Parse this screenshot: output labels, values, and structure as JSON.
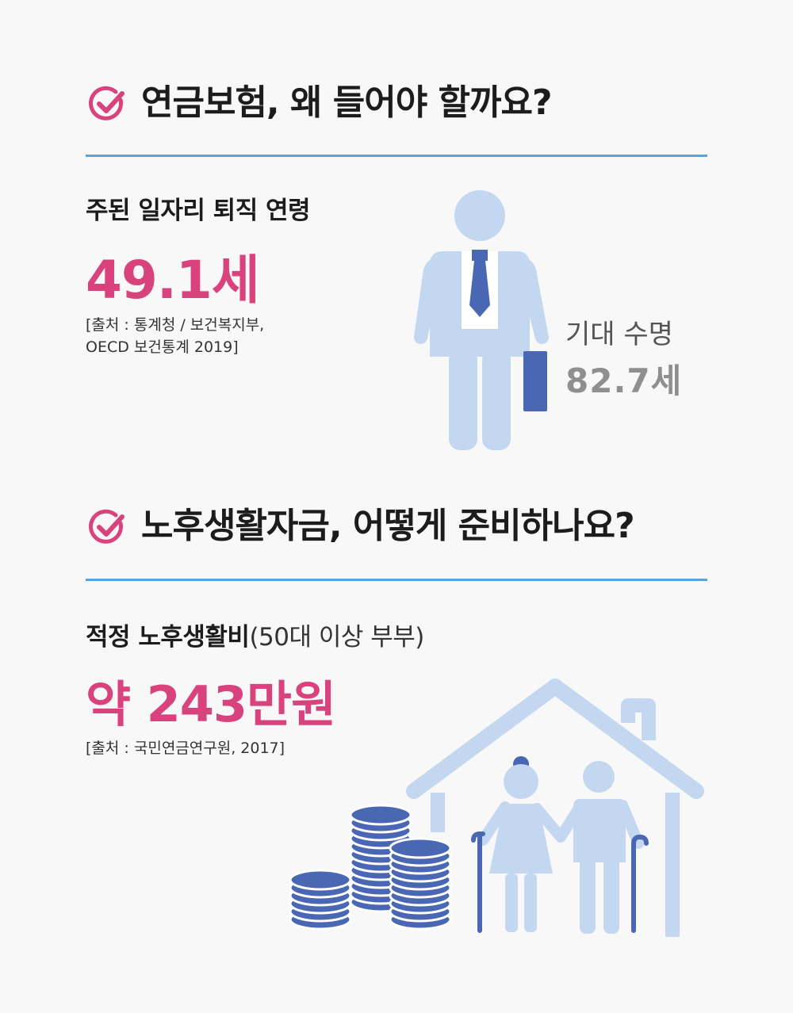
{
  "section1": {
    "heading": "연금보험, 왜 들어야 할까요?",
    "subtitle": "주된 일자리 퇴직 연령",
    "value": "49.1세",
    "source_line1": "[출처 : 통계청 / 보건복지부,",
    "source_line2": "OECD 보건통계 2019]",
    "life_label": "기대 수명",
    "life_value": "82.7세"
  },
  "section2": {
    "heading": "노후생활자금, 어떻게 준비하나요?",
    "subtitle_bold": "적정 노후생활비",
    "subtitle_normal": "(50대 이상 부부)",
    "value": "약 243만원",
    "source": "[출처 : 국민연금연구원, 2017]"
  },
  "colors": {
    "accent_pink": "#d9437d",
    "rule_blue": "#5ba3dc",
    "illustration_light": "#c3d7f1",
    "illustration_dark": "#4a67b4"
  },
  "icons": {
    "check": "check-circle-icon",
    "businessman": "businessman-icon",
    "house": "house-icon",
    "coins": "coin-stack-icon",
    "elderly": "elderly-couple-icon"
  }
}
